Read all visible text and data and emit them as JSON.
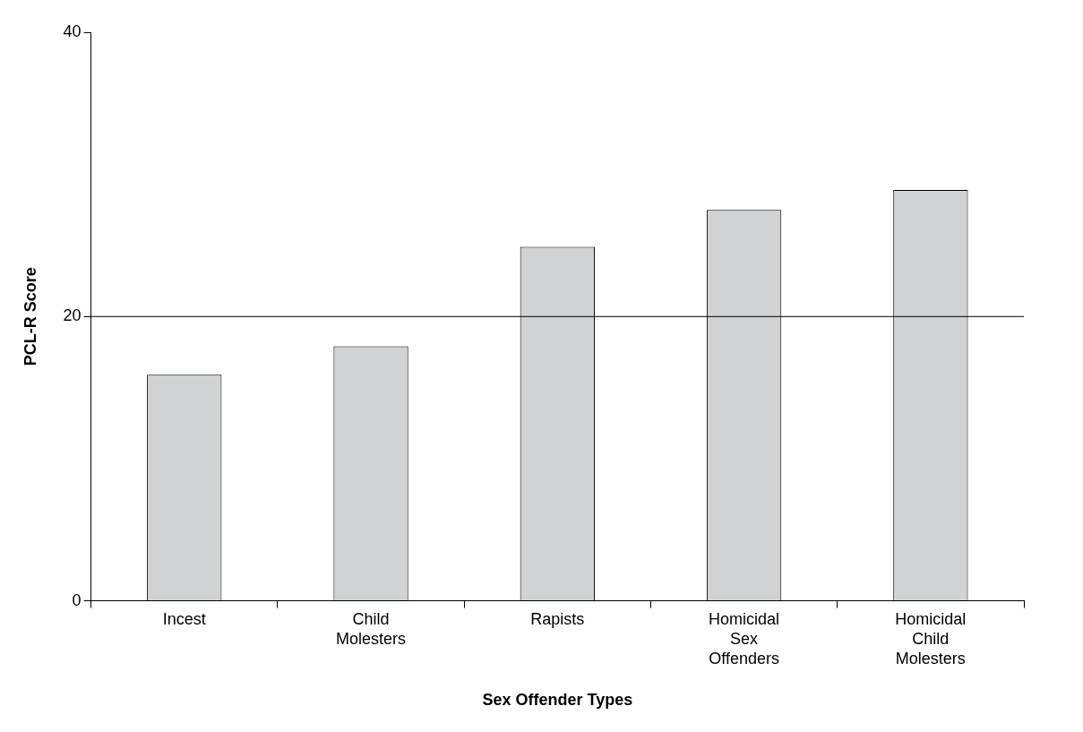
{
  "chart_data": {
    "type": "bar",
    "xlabel": "Sex Offender Types",
    "ylabel": "PCL-R Score",
    "categories": [
      "Incest",
      "Child Molesters",
      "Rapists",
      "Homicidal Sex Offenders",
      "Homicidal Child Molesters"
    ],
    "values": [
      15.9,
      17.9,
      24.9,
      27.5,
      28.9
    ],
    "color": "#d1d2d4",
    "ylim": [
      0,
      40
    ],
    "yticks": [
      0,
      20,
      40
    ],
    "grid": false,
    "legend": false,
    "ref_lines": [
      {
        "axis": "y",
        "value": 20,
        "color": "#000000"
      }
    ]
  }
}
